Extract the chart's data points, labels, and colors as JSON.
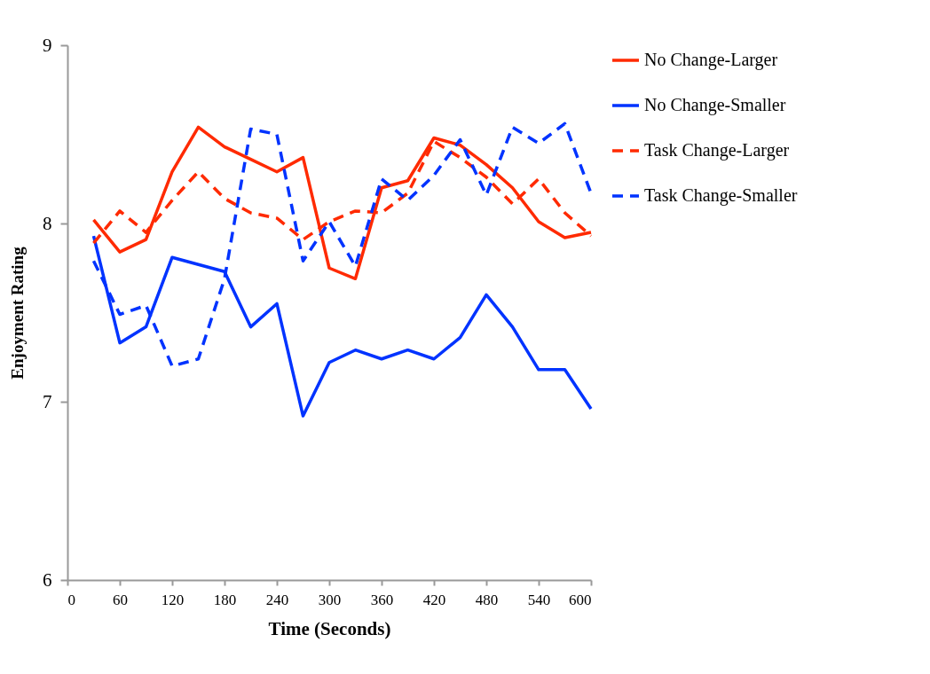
{
  "chart_data": {
    "type": "line",
    "xlabel": "Time (Seconds)",
    "ylabel": "Enjoyment Rating",
    "x": [
      30,
      60,
      90,
      120,
      150,
      180,
      210,
      240,
      270,
      300,
      330,
      360,
      390,
      420,
      450,
      480,
      510,
      540,
      570,
      600
    ],
    "xlim": [
      0,
      600
    ],
    "xticks": [
      0,
      60,
      120,
      180,
      240,
      300,
      360,
      420,
      480,
      540,
      600
    ],
    "ylim": [
      6,
      9
    ],
    "yticks": [
      6,
      7,
      8,
      9
    ],
    "grid": false,
    "legend": "right",
    "marker": "none",
    "series": [
      {
        "name": "No Change-Larger",
        "color": "#ff2a00",
        "line_style": "solid",
        "values": [
          8.02,
          7.84,
          7.91,
          8.29,
          8.54,
          8.43,
          8.36,
          8.29,
          8.37,
          7.75,
          7.69,
          8.2,
          8.24,
          8.48,
          8.44,
          8.33,
          8.2,
          8.01,
          7.92,
          7.95
        ]
      },
      {
        "name": "No Change-Smaller",
        "color": "#0033ff",
        "line_style": "solid",
        "values": [
          7.93,
          7.33,
          7.42,
          7.81,
          7.77,
          7.73,
          7.42,
          7.55,
          6.92,
          7.22,
          7.29,
          7.24,
          7.29,
          7.24,
          7.36,
          7.6,
          7.42,
          7.18,
          7.18,
          6.96
        ]
      },
      {
        "name": "Task Change-Larger",
        "color": "#ff2a00",
        "line_style": "dashed",
        "values": [
          7.89,
          8.07,
          7.95,
          8.13,
          8.29,
          8.14,
          8.06,
          8.03,
          7.91,
          8.01,
          8.07,
          8.06,
          8.17,
          8.46,
          8.37,
          8.26,
          8.11,
          8.25,
          8.06,
          7.93
        ]
      },
      {
        "name": "Task Change-Smaller",
        "color": "#0033ff",
        "line_style": "dashed",
        "values": [
          7.79,
          7.49,
          7.54,
          7.2,
          7.24,
          7.69,
          8.53,
          8.5,
          7.79,
          8.01,
          7.76,
          8.25,
          8.13,
          8.27,
          8.47,
          8.16,
          8.54,
          8.45,
          8.56,
          8.17
        ]
      }
    ]
  }
}
